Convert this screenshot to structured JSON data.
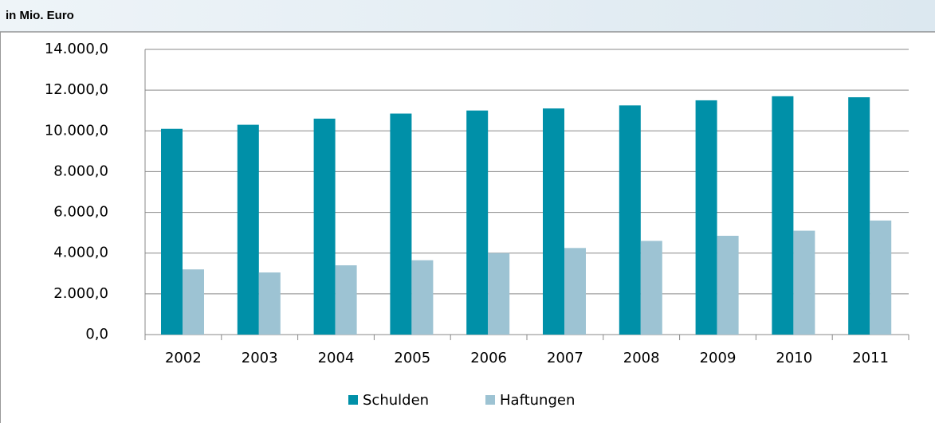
{
  "chart_data": {
    "type": "bar",
    "title": "in Mio. Euro",
    "categories": [
      "2002",
      "2003",
      "2004",
      "2005",
      "2006",
      "2007",
      "2008",
      "2009",
      "2010",
      "2011"
    ],
    "series": [
      {
        "name": "Schulden",
        "color": "#0090a8",
        "values": [
          10100,
          10300,
          10600,
          10850,
          11000,
          11100,
          11250,
          11500,
          11700,
          11650
        ]
      },
      {
        "name": "Haftungen",
        "color": "#9dc3d3",
        "values": [
          3200,
          3050,
          3400,
          3650,
          4000,
          4250,
          4600,
          4850,
          5100,
          5600
        ]
      }
    ],
    "ylim": [
      0,
      14000
    ],
    "yticks": [
      {
        "value": 0,
        "label": "0,0"
      },
      {
        "value": 2000,
        "label": "2.000,0"
      },
      {
        "value": 4000,
        "label": "4.000,0"
      },
      {
        "value": 6000,
        "label": "6.000,0"
      },
      {
        "value": 8000,
        "label": "8.000,0"
      },
      {
        "value": 10000,
        "label": "10.000,0"
      },
      {
        "value": 12000,
        "label": "12.000,0"
      },
      {
        "value": 14000,
        "label": "14.000,0"
      }
    ],
    "grid": true,
    "legend": "bottom"
  }
}
